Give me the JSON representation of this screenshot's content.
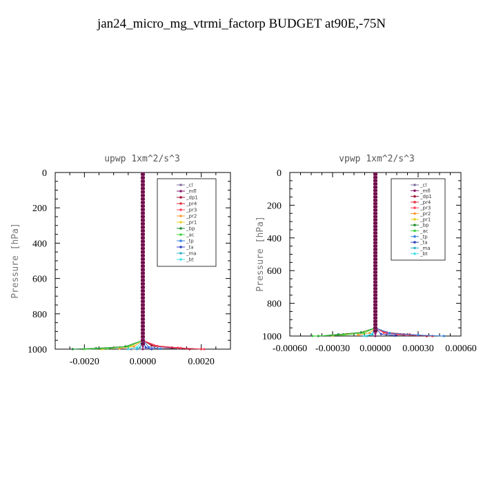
{
  "figure_title": "jan24_micro_mg_vtrmi_factorp  BUDGET at90E,-75N",
  "chart_data": [
    {
      "type": "line",
      "title": "upwp   1xm^2/s^3",
      "ylabel": "Pressure [hPa]",
      "xlabel": "",
      "ylim": [
        1000,
        0
      ],
      "xlim": [
        -0.003,
        0.003
      ],
      "xticks": [
        -0.002,
        0.0,
        0.002
      ],
      "xtick_labels": [
        "-0.0020",
        "0.0000",
        "0.0020"
      ],
      "yticks": [
        0,
        200,
        400,
        600,
        800,
        1000
      ],
      "ytick_labels": [
        "0",
        "200",
        "400",
        "600",
        "800",
        "1000"
      ],
      "grid": false,
      "legend_position": "top-right",
      "series": [
        {
          "name": "_cl",
          "color": "#7f6f9f",
          "x": [
            0,
            0,
            0,
            0.0004,
            0.0012,
            -0.0004
          ],
          "y": [
            0,
            500,
            950,
            985,
            995,
            1000
          ]
        },
        {
          "name": "_mfl",
          "color": "#8b1a6b",
          "x": [
            0,
            0,
            0,
            0,
            0
          ],
          "y": [
            0,
            500,
            950,
            985,
            1000
          ]
        },
        {
          "name": "_dp1",
          "color": "#a01030",
          "x": [
            0,
            0,
            0,
            0.0003,
            0.001,
            0.0016
          ],
          "y": [
            0,
            500,
            950,
            980,
            992,
            1000
          ]
        },
        {
          "name": "_pr4",
          "color": "#e0303a",
          "x": [
            0,
            0,
            0,
            0.0004,
            0.0012,
            0.002
          ],
          "y": [
            0,
            500,
            950,
            980,
            992,
            1000
          ]
        },
        {
          "name": "_pr3",
          "color": "#ff4060",
          "x": [
            0,
            0,
            0,
            0.0005,
            0.0013,
            0.0021
          ],
          "y": [
            0,
            500,
            950,
            982,
            993,
            1000
          ]
        },
        {
          "name": "_pr2",
          "color": "#ff9a30",
          "x": [
            0,
            0,
            0,
            -0.0003,
            -0.0008
          ],
          "y": [
            0,
            500,
            950,
            985,
            996
          ]
        },
        {
          "name": "_pr1",
          "color": "#e8d020",
          "x": [
            0,
            0,
            0,
            -0.0004,
            -0.001,
            -0.0014
          ],
          "y": [
            0,
            500,
            950,
            982,
            993,
            1000
          ]
        },
        {
          "name": "_bp",
          "color": "#208a30",
          "x": [
            0,
            0,
            0,
            -0.0006,
            -0.0016,
            -0.0024
          ],
          "y": [
            0,
            500,
            950,
            985,
            995,
            1000
          ]
        },
        {
          "name": "_ac",
          "color": "#40d040",
          "x": [
            0,
            0,
            0,
            -0.0005,
            -0.0012,
            -0.002
          ],
          "y": [
            0,
            500,
            950,
            986,
            996,
            1000
          ]
        },
        {
          "name": "_tp",
          "color": "#3080e0",
          "x": [
            0,
            0,
            0,
            0.0002,
            0.0006
          ],
          "y": [
            0,
            500,
            950,
            988,
            998
          ]
        },
        {
          "name": "_ta",
          "color": "#3040c0",
          "x": [
            0,
            0,
            0,
            0.0001,
            0.0003
          ],
          "y": [
            0,
            500,
            950,
            990,
            1000
          ]
        },
        {
          "name": "_ma",
          "color": "#30b0d0",
          "x": [
            0,
            0,
            0,
            -0.0001,
            -0.0002
          ],
          "y": [
            0,
            500,
            950,
            990,
            1000
          ]
        },
        {
          "name": "_bt",
          "color": "#40e0e8",
          "x": [
            0,
            0,
            0,
            -0.0002,
            -0.0005
          ],
          "y": [
            0,
            500,
            950,
            990,
            1000
          ]
        }
      ]
    },
    {
      "type": "line",
      "title": "vpwp   1xm^2/s^3",
      "ylabel": "Pressure [hPa]",
      "xlabel": "",
      "ylim": [
        1000,
        0
      ],
      "xlim": [
        -0.0006,
        0.0006
      ],
      "xticks": [
        -0.0006,
        -0.0003,
        0.0,
        0.0003,
        0.0006
      ],
      "xtick_labels": [
        "-0.00060",
        "-0.00030",
        "0.00000",
        "0.00030",
        "0.00060"
      ],
      "yticks": [
        0,
        200,
        400,
        600,
        800,
        1000
      ],
      "ytick_labels": [
        "0",
        "200",
        "400",
        "600",
        "800",
        "1000"
      ],
      "grid": false,
      "legend_position": "top-right",
      "series": [
        {
          "name": "_cl",
          "color": "#7f6f9f",
          "x": [
            0,
            0,
            0,
            8e-05,
            0.00022
          ],
          "y": [
            0,
            500,
            950,
            985,
            998
          ]
        },
        {
          "name": "_mfl",
          "color": "#8b1a6b",
          "x": [
            0,
            0,
            0,
            0,
            0
          ],
          "y": [
            0,
            500,
            950,
            985,
            1000
          ]
        },
        {
          "name": "_dp1",
          "color": "#a01030",
          "x": [
            0,
            0,
            0,
            6e-05,
            0.0002,
            0.00036
          ],
          "y": [
            0,
            500,
            950,
            978,
            990,
            1000
          ]
        },
        {
          "name": "_pr4",
          "color": "#e0303a",
          "x": [
            0,
            0,
            0,
            8e-05,
            0.00024,
            0.0004
          ],
          "y": [
            0,
            500,
            950,
            978,
            990,
            1000
          ]
        },
        {
          "name": "_pr3",
          "color": "#ff4060",
          "x": [
            0,
            0,
            0,
            6e-05,
            0.00016,
            0.0003
          ],
          "y": [
            0,
            500,
            950,
            980,
            990,
            998
          ]
        },
        {
          "name": "_pr2",
          "color": "#ff9a30",
          "x": [
            0,
            0,
            0,
            -4e-05,
            -0.00012
          ],
          "y": [
            0,
            500,
            950,
            982,
            993
          ]
        },
        {
          "name": "_pr1",
          "color": "#e8d020",
          "x": [
            0,
            0,
            0,
            -8e-05,
            -0.0002,
            -0.0003
          ],
          "y": [
            0,
            500,
            950,
            975,
            988,
            998
          ]
        },
        {
          "name": "_bp",
          "color": "#208a30",
          "x": [
            0,
            0,
            0,
            -0.0001,
            -0.00026,
            -0.0004
          ],
          "y": [
            0,
            500,
            950,
            978,
            990,
            1000
          ]
        },
        {
          "name": "_ac",
          "color": "#40d040",
          "x": [
            0,
            0,
            0,
            -8e-05,
            -0.00022,
            -0.00044
          ],
          "y": [
            0,
            500,
            950,
            982,
            994,
            1000
          ]
        },
        {
          "name": "_tp",
          "color": "#3080e0",
          "x": [
            0,
            0,
            0,
            0.0001,
            0.0003,
            0.00048
          ],
          "y": [
            0,
            500,
            950,
            982,
            994,
            1000
          ]
        },
        {
          "name": "_ta",
          "color": "#3040c0",
          "x": [
            0,
            0,
            0,
            4e-05,
            0.00014
          ],
          "y": [
            0,
            500,
            950,
            988,
            998
          ]
        },
        {
          "name": "_ma",
          "color": "#30b0d0",
          "x": [
            0,
            0,
            0,
            -2e-05,
            -6e-05
          ],
          "y": [
            0,
            500,
            950,
            990,
            1000
          ]
        },
        {
          "name": "_bt",
          "color": "#40e0e8",
          "x": [
            0,
            0,
            0,
            -3e-05,
            -8e-05
          ],
          "y": [
            0,
            500,
            950,
            990,
            1000
          ]
        }
      ]
    }
  ]
}
